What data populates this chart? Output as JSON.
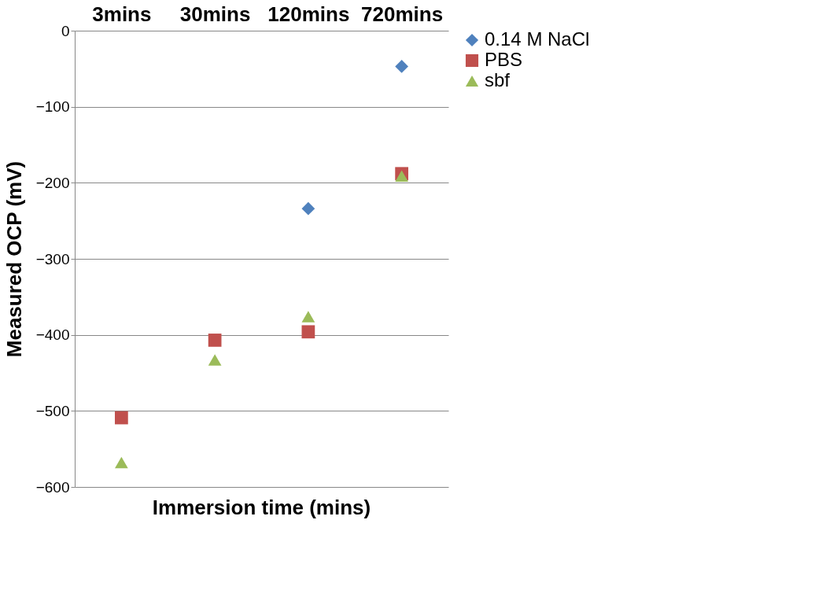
{
  "chart_data": {
    "type": "scatter",
    "xlabel": "Immersion time (mins)",
    "ylabel": "Measured OCP (mV)",
    "categories": [
      "3mins",
      "30mins",
      "120mins",
      "720mins"
    ],
    "series": [
      {
        "name": "0.14 M NaCl",
        "color": "#4f81bd",
        "marker": "diamond",
        "values": [
          null,
          null,
          -234,
          -47
        ]
      },
      {
        "name": "PBS",
        "color": "#c0504d",
        "marker": "square",
        "values": [
          -509,
          -407,
          -396,
          -188
        ]
      },
      {
        "name": "sbf",
        "color": "#9bbb59",
        "marker": "triangle",
        "values": [
          -568,
          -433,
          -376,
          -191
        ]
      }
    ],
    "ylim": [
      -600,
      0
    ],
    "yticks": [
      -600,
      -500,
      -400,
      -300,
      -200,
      -100,
      0
    ],
    "grid": "y",
    "legend": "right"
  }
}
